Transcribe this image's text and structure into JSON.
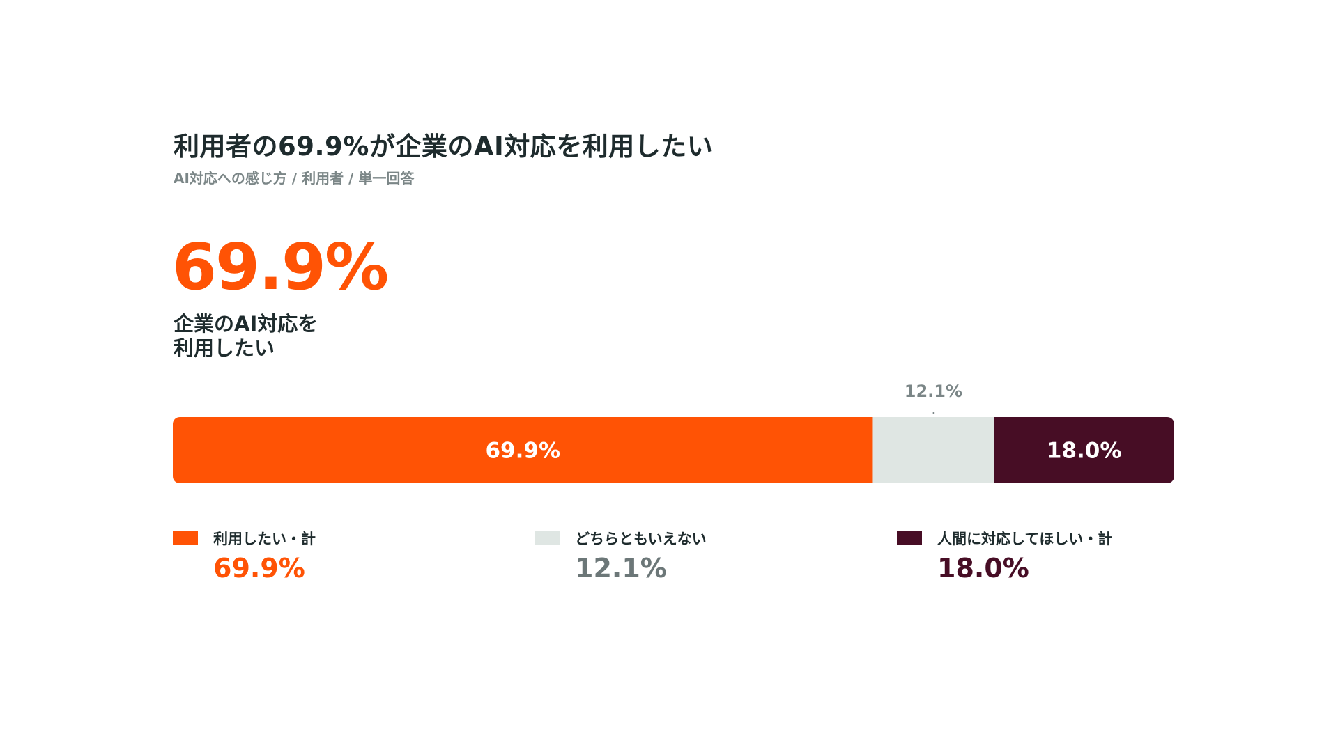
{
  "header": {
    "title": "利用者の69.9%が企業のAI対応を利用したい",
    "subtitle": "AI対応への感じ方 / 利用者 / 単一回答"
  },
  "highlight": {
    "value": "69.9%",
    "caption_line1": "企業のAI対応を",
    "caption_line2": "利用したい"
  },
  "chart_data": {
    "type": "bar",
    "orientation": "horizontal-stacked",
    "unit": "%",
    "series": [
      {
        "name": "利用したい・計",
        "value": 69.9,
        "label": "69.9%",
        "color": "#ff5305",
        "label_color": "#ffffff",
        "value_color": "#ff5305"
      },
      {
        "name": "どちらともいえない",
        "value": 12.1,
        "label": "12.1%",
        "color": "#dfe6e3",
        "label_color": "#7b8687",
        "value_color": "#6c7778"
      },
      {
        "name": "人間に対応してほしい・計",
        "value": 18.0,
        "label": "18.0%",
        "color": "#470d25",
        "label_color": "#ffffff",
        "value_color": "#470d25"
      }
    ],
    "legend_position": "bottom",
    "grid": false
  }
}
